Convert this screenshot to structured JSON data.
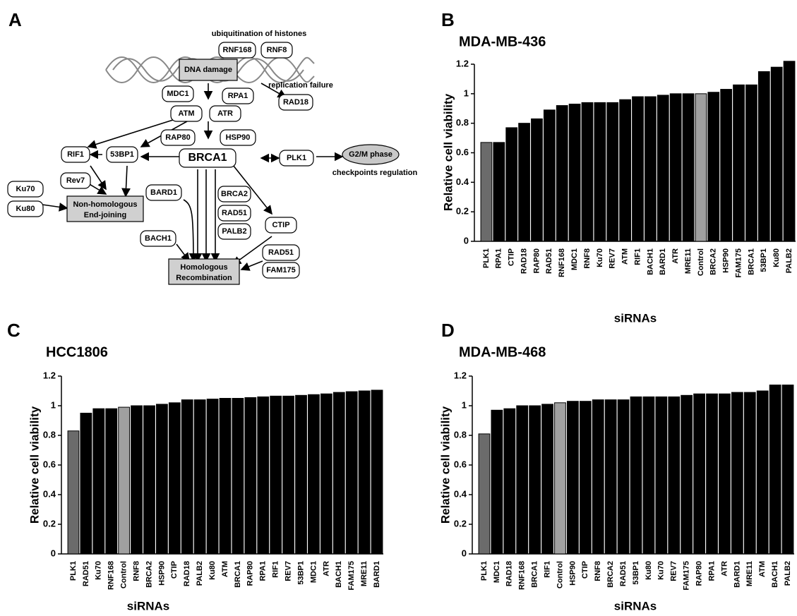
{
  "diagram": {
    "panel_label": "A",
    "nodes": [
      "ubiquitination of histones",
      "RNF168",
      "RNF8",
      "DNA damage",
      "MDC1",
      "RPA1",
      "replication failure",
      "RAD18",
      "ATM",
      "ATR",
      "RAP80",
      "HSP90",
      "BRCA1",
      "PLK1",
      "G2/M phase",
      "checkpoints regulation",
      "RIF1",
      "53BP1",
      "Rev7",
      "Ku70",
      "Ku80",
      "Non-homologous",
      "End-joining",
      "BARD1",
      "BRCA2",
      "RAD51",
      "PALB2",
      "CTIP",
      "BACH1",
      "RAD51",
      "FAM175",
      "Homologous",
      "Recombination"
    ]
  },
  "chart_data": [
    {
      "type": "bar",
      "panel_label": "B",
      "title": "MDA-MB-436",
      "xlabel": "siRNAs",
      "ylabel": "Relative cell viability",
      "categories": [
        "PLK1",
        "RPA1",
        "CTIP",
        "RAD18",
        "RAP80",
        "RAD51",
        "RNF168",
        "MDC1",
        "RNF8",
        "Ku70",
        "REV7",
        "ATM",
        "RIF1",
        "BACH1",
        "BARD1",
        "ATR",
        "MRE11",
        "Control",
        "BRCA2",
        "HSP90",
        "FAM175",
        "BRCA1",
        "53BP1",
        "Ku80",
        "PALB2"
      ],
      "values": [
        0.67,
        0.67,
        0.77,
        0.8,
        0.83,
        0.89,
        0.92,
        0.93,
        0.94,
        0.94,
        0.94,
        0.96,
        0.98,
        0.98,
        0.99,
        1.0,
        1.0,
        1.0,
        1.01,
        1.03,
        1.06,
        1.06,
        1.15,
        1.18,
        1.22
      ],
      "colors": [
        "#6b6b6b",
        "#000000",
        "#000000",
        "#000000",
        "#000000",
        "#000000",
        "#000000",
        "#000000",
        "#000000",
        "#000000",
        "#000000",
        "#000000",
        "#000000",
        "#000000",
        "#000000",
        "#000000",
        "#000000",
        "#a0a0a0",
        "#000000",
        "#000000",
        "#000000",
        "#000000",
        "#000000",
        "#000000",
        "#000000"
      ],
      "ylim": [
        0,
        1.2
      ],
      "yticks": [
        0,
        0.2,
        0.4,
        0.6,
        0.8,
        1,
        1.2
      ]
    },
    {
      "type": "bar",
      "panel_label": "C",
      "title": "HCC1806",
      "xlabel": "siRNAs",
      "ylabel": "Relative cell viability",
      "categories": [
        "PLK1",
        "RAD51",
        "Ku70",
        "RNF168",
        "Control",
        "RNF8",
        "BRCA2",
        "HSP90",
        "CTIP",
        "RAD18",
        "PALB2",
        "Ku80",
        "ATM",
        "BRCA1",
        "RAP80",
        "RPA1",
        "RIF1",
        "REV7",
        "53BP1",
        "MDC1",
        "ATR",
        "BACH1",
        "FAM175",
        "MRE11",
        "BARD1"
      ],
      "values": [
        0.83,
        0.95,
        0.98,
        0.98,
        0.99,
        1.0,
        1.0,
        1.01,
        1.02,
        1.04,
        1.04,
        1.045,
        1.05,
        1.05,
        1.055,
        1.06,
        1.065,
        1.065,
        1.07,
        1.075,
        1.08,
        1.09,
        1.095,
        1.1,
        1.105
      ],
      "colors": [
        "#6b6b6b",
        "#000000",
        "#000000",
        "#000000",
        "#a0a0a0",
        "#000000",
        "#000000",
        "#000000",
        "#000000",
        "#000000",
        "#000000",
        "#000000",
        "#000000",
        "#000000",
        "#000000",
        "#000000",
        "#000000",
        "#000000",
        "#000000",
        "#000000",
        "#000000",
        "#000000",
        "#000000",
        "#000000",
        "#000000"
      ],
      "ylim": [
        0,
        1.2
      ],
      "yticks": [
        0,
        0.2,
        0.4,
        0.6,
        0.8,
        1,
        1.2
      ]
    },
    {
      "type": "bar",
      "panel_label": "D",
      "title": "MDA-MB-468",
      "xlabel": "siRNAs",
      "ylabel": "Relative cell viability",
      "categories": [
        "PLK1",
        "MDC1",
        "RAD18",
        "RNF168",
        "BRCA1",
        "RIF1",
        "Control",
        "HSP90",
        "CTIP",
        "RNF8",
        "BRCA2",
        "RAD51",
        "53BP1",
        "Ku80",
        "Ku70",
        "REV7",
        "FAM175",
        "RAP80",
        "RPA1",
        "ATR",
        "BARD1",
        "MRE11",
        "ATM",
        "BACH1",
        "PALB2"
      ],
      "values": [
        0.81,
        0.97,
        0.98,
        1.0,
        1.0,
        1.01,
        1.02,
        1.03,
        1.03,
        1.04,
        1.04,
        1.04,
        1.06,
        1.06,
        1.06,
        1.06,
        1.07,
        1.08,
        1.08,
        1.08,
        1.09,
        1.09,
        1.1,
        1.14,
        1.14
      ],
      "colors": [
        "#6b6b6b",
        "#000000",
        "#000000",
        "#000000",
        "#000000",
        "#000000",
        "#a0a0a0",
        "#000000",
        "#000000",
        "#000000",
        "#000000",
        "#000000",
        "#000000",
        "#000000",
        "#000000",
        "#000000",
        "#000000",
        "#000000",
        "#000000",
        "#000000",
        "#000000",
        "#000000",
        "#000000",
        "#000000",
        "#000000"
      ],
      "ylim": [
        0,
        1.2
      ],
      "yticks": [
        0,
        0.2,
        0.4,
        0.6,
        0.8,
        1,
        1.2
      ]
    }
  ]
}
